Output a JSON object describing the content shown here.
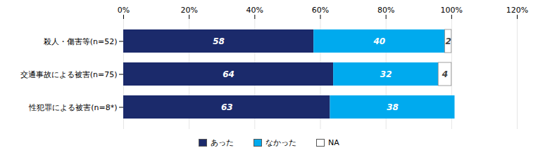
{
  "chart_data": {
    "type": "bar",
    "orientation": "horizontal",
    "stacked": true,
    "categories": [
      "殺人・傷害等(n=52)",
      "交通事故による被害(n=75)",
      "性犯罪による被害(n=8*)"
    ],
    "series": [
      {
        "name": "あった",
        "color": "#1B2A6B",
        "values": [
          58,
          64,
          63
        ]
      },
      {
        "name": "なかった",
        "color": "#00AAEE",
        "values": [
          40,
          32,
          38
        ]
      },
      {
        "name": "NA",
        "color": "#FFFFFF",
        "values": [
          2,
          4,
          0
        ]
      }
    ],
    "xlim": [
      0,
      120
    ],
    "xticks": [
      {
        "value": 0,
        "label": "0%"
      },
      {
        "value": 20,
        "label": "20%"
      },
      {
        "value": 40,
        "label": "40%"
      },
      {
        "value": 60,
        "label": "60%"
      },
      {
        "value": 80,
        "label": "80%"
      },
      {
        "value": 100,
        "label": "100%"
      },
      {
        "value": 120,
        "label": "120%"
      }
    ],
    "grid": true,
    "legend": "bottom",
    "data_labels": true
  }
}
